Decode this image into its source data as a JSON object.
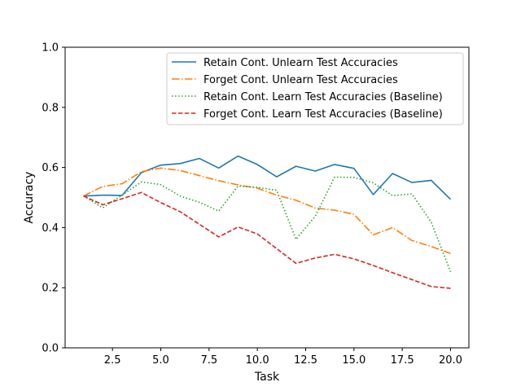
{
  "chart_data": {
    "type": "line",
    "xlabel": "Task",
    "ylabel": "Accuracy",
    "xlim": [
      0.05,
      20.95
    ],
    "ylim": [
      0,
      1
    ],
    "xticks": [
      2.5,
      5.0,
      7.5,
      10.0,
      12.5,
      15.0,
      17.5,
      20.0
    ],
    "xtick_labels": [
      "2.5",
      "5.0",
      "7.5",
      "10.0",
      "12.5",
      "15.0",
      "17.5",
      "20.0"
    ],
    "yticks": [
      0.0,
      0.2,
      0.4,
      0.6,
      0.8,
      1.0
    ],
    "ytick_labels": [
      "0.0",
      "0.2",
      "0.4",
      "0.6",
      "0.8",
      "1.0"
    ],
    "grid": false,
    "legend_position": "top-right",
    "x": [
      1,
      2,
      3,
      4,
      5,
      6,
      7,
      8,
      9,
      10,
      11,
      12,
      13,
      14,
      15,
      16,
      17,
      18,
      19,
      20
    ],
    "series": [
      {
        "name": "Retain Cont. Unlearn Test Accuracies",
        "color": "#1f77b4",
        "dash": "solid",
        "values": [
          0.505,
          0.508,
          0.507,
          0.583,
          0.608,
          0.613,
          0.63,
          0.598,
          0.638,
          0.61,
          0.569,
          0.604,
          0.588,
          0.61,
          0.597,
          0.51,
          0.58,
          0.55,
          0.557,
          0.494
        ]
      },
      {
        "name": "Forget Cont. Unlearn Test Accuracies",
        "color": "#ff7f0e",
        "dash": "dashdot",
        "values": [
          0.505,
          0.537,
          0.546,
          0.586,
          0.598,
          0.59,
          0.573,
          0.556,
          0.542,
          0.531,
          0.508,
          0.491,
          0.465,
          0.458,
          0.444,
          0.376,
          0.4,
          0.357,
          0.337,
          0.314
        ]
      },
      {
        "name": "Retain Cont. Learn Test Accuracies (Baseline)",
        "color": "#2ca02c",
        "dash": "dotted",
        "values": [
          0.505,
          0.466,
          0.508,
          0.552,
          0.543,
          0.505,
          0.484,
          0.455,
          0.538,
          0.534,
          0.524,
          0.361,
          0.438,
          0.568,
          0.567,
          0.549,
          0.506,
          0.512,
          0.418,
          0.253
        ]
      },
      {
        "name": "Forget Cont. Learn Test Accuracies (Baseline)",
        "color": "#d62728",
        "dash": "dashed",
        "values": [
          0.505,
          0.476,
          0.496,
          0.517,
          0.483,
          0.453,
          0.411,
          0.369,
          0.402,
          0.379,
          0.33,
          0.281,
          0.299,
          0.311,
          0.296,
          0.274,
          0.25,
          0.227,
          0.204,
          0.198
        ]
      }
    ]
  }
}
